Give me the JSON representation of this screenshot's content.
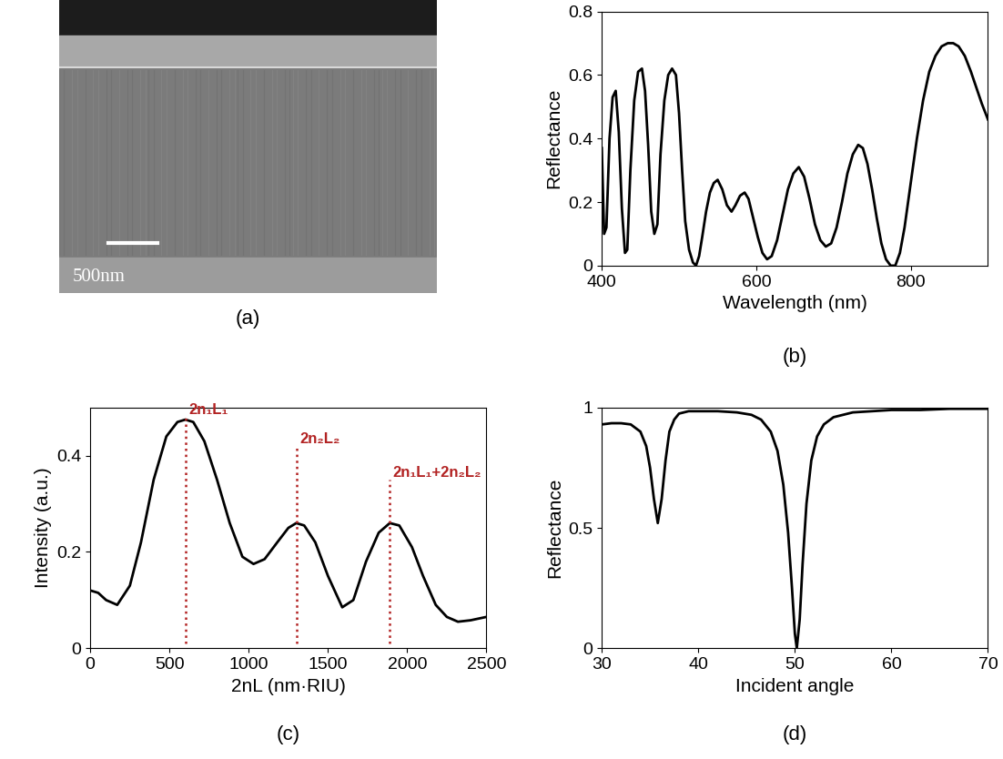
{
  "chart_data": [
    {
      "type": "image",
      "scale_bar_label": "500nm",
      "caption": "(a)"
    },
    {
      "type": "line",
      "caption": "(b)",
      "x_label": "Wavelength (nm)",
      "y_label": "Reflectance",
      "color": "#000000",
      "x": [
        400,
        403,
        406,
        410,
        414,
        418,
        422,
        426,
        430,
        433,
        437,
        442,
        447,
        452,
        456,
        460,
        464,
        468,
        472,
        476,
        481,
        486,
        491,
        496,
        500,
        504,
        508,
        513,
        518,
        522,
        526,
        530,
        535,
        540,
        545,
        550,
        556,
        562,
        568,
        573,
        579,
        585,
        590,
        596,
        602,
        608,
        614,
        620,
        627,
        634,
        641,
        648,
        655,
        662,
        669,
        676,
        683,
        690,
        697,
        704,
        711,
        718,
        725,
        732,
        738,
        744,
        750,
        756,
        762,
        768,
        774,
        780,
        786,
        792,
        800,
        808,
        816,
        824,
        832,
        840,
        848,
        855,
        862,
        870,
        878,
        885,
        892,
        900
      ],
      "values": [
        0.37,
        0.1,
        0.12,
        0.4,
        0.53,
        0.55,
        0.42,
        0.18,
        0.04,
        0.05,
        0.3,
        0.52,
        0.61,
        0.62,
        0.55,
        0.38,
        0.17,
        0.1,
        0.13,
        0.35,
        0.52,
        0.6,
        0.62,
        0.6,
        0.48,
        0.3,
        0.14,
        0.05,
        0.01,
        0.0,
        0.03,
        0.09,
        0.17,
        0.23,
        0.26,
        0.27,
        0.24,
        0.19,
        0.17,
        0.19,
        0.22,
        0.23,
        0.21,
        0.15,
        0.09,
        0.04,
        0.02,
        0.03,
        0.08,
        0.16,
        0.24,
        0.29,
        0.31,
        0.28,
        0.21,
        0.13,
        0.08,
        0.06,
        0.07,
        0.12,
        0.2,
        0.29,
        0.35,
        0.38,
        0.37,
        0.32,
        0.24,
        0.15,
        0.07,
        0.02,
        0.0,
        0.0,
        0.04,
        0.12,
        0.26,
        0.4,
        0.52,
        0.61,
        0.66,
        0.69,
        0.7,
        0.7,
        0.69,
        0.66,
        0.61,
        0.56,
        0.51,
        0.46
      ],
      "xlim": [
        400,
        900
      ],
      "xticks": [
        400,
        600,
        800
      ],
      "ylim": [
        0,
        0.8
      ],
      "yticks": [
        0,
        0.2,
        0.4,
        0.6,
        0.8
      ]
    },
    {
      "type": "line",
      "caption": "(c)",
      "x_label": "2nL (nm·RIU)",
      "y_label": "Intensity (a.u.)",
      "color": "#000000",
      "x": [
        0,
        50,
        100,
        170,
        250,
        320,
        400,
        480,
        550,
        600,
        650,
        720,
        800,
        880,
        960,
        1030,
        1100,
        1180,
        1250,
        1300,
        1350,
        1420,
        1500,
        1590,
        1660,
        1740,
        1820,
        1890,
        1950,
        2030,
        2100,
        2180,
        2250,
        2320,
        2400,
        2500
      ],
      "values": [
        0.12,
        0.115,
        0.1,
        0.09,
        0.13,
        0.22,
        0.35,
        0.44,
        0.47,
        0.475,
        0.47,
        0.43,
        0.35,
        0.26,
        0.19,
        0.175,
        0.185,
        0.22,
        0.25,
        0.26,
        0.255,
        0.22,
        0.15,
        0.085,
        0.1,
        0.18,
        0.24,
        0.26,
        0.255,
        0.21,
        0.15,
        0.09,
        0.065,
        0.055,
        0.058,
        0.065
      ],
      "xlim": [
        0,
        2500
      ],
      "xticks": [
        0,
        500,
        1000,
        1500,
        2000,
        2500
      ],
      "ylim": [
        0,
        0.5
      ],
      "yticks": [
        0,
        0.2,
        0.4
      ],
      "annotations": [
        {
          "text": "2n₁L₁",
          "x": 600,
          "y": 0.48
        },
        {
          "text": "2n₂L₂",
          "x": 1300,
          "y": 0.42
        },
        {
          "text": "2n₁L₁+2n₂L₂",
          "x": 1890,
          "y": 0.35
        }
      ]
    },
    {
      "type": "line",
      "caption": "(d)",
      "x_label": "Incident angle",
      "y_label": "Reflectance",
      "color": "#000000",
      "x": [
        30,
        31,
        32,
        33,
        34,
        34.6,
        35,
        35.4,
        35.8,
        36.2,
        36.6,
        37,
        37.5,
        38,
        39,
        40,
        42,
        44,
        45.5,
        46.5,
        47.5,
        48.2,
        48.8,
        49.3,
        49.7,
        50.0,
        50.2,
        50.5,
        50.8,
        51.2,
        51.7,
        52.3,
        53,
        54,
        56,
        58,
        60,
        63,
        66,
        70
      ],
      "values": [
        0.93,
        0.935,
        0.935,
        0.93,
        0.9,
        0.84,
        0.75,
        0.62,
        0.52,
        0.62,
        0.78,
        0.9,
        0.95,
        0.975,
        0.985,
        0.985,
        0.985,
        0.98,
        0.97,
        0.95,
        0.9,
        0.82,
        0.68,
        0.48,
        0.25,
        0.06,
        0.0,
        0.12,
        0.35,
        0.6,
        0.78,
        0.88,
        0.93,
        0.96,
        0.98,
        0.985,
        0.99,
        0.99,
        0.995,
        0.995
      ],
      "xlim": [
        30,
        70
      ],
      "xticks": [
        30,
        40,
        50,
        60,
        70
      ],
      "ylim": [
        0,
        1
      ],
      "yticks": [
        0,
        0.5,
        1
      ]
    }
  ]
}
